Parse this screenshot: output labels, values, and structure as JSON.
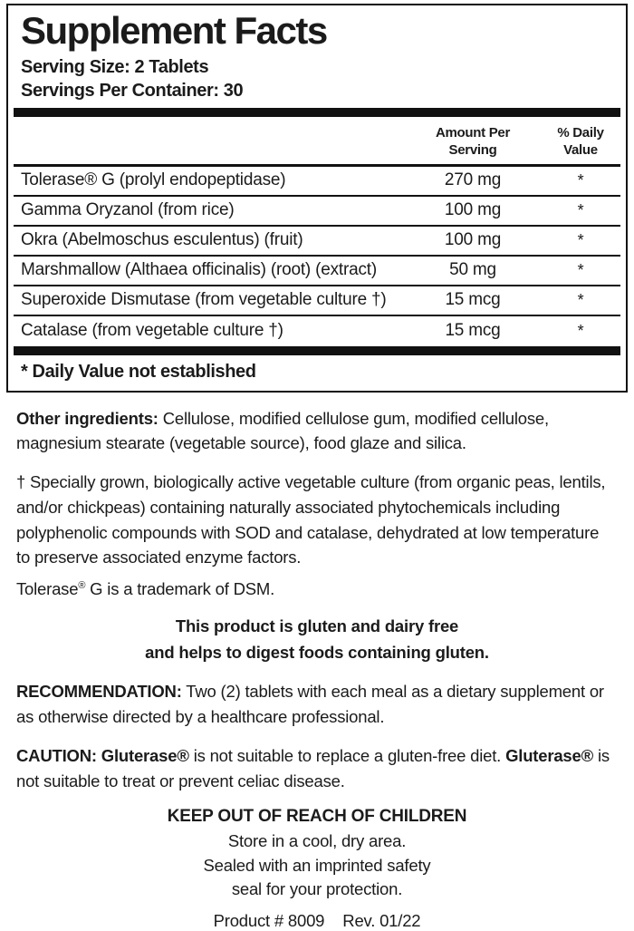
{
  "panel": {
    "title": "Supplement Facts",
    "serving_size": "Serving Size: 2 Tablets",
    "servings_per_container": "Servings Per Container: 30",
    "amount_header": "Amount Per\nServing",
    "daily_value_header": "% Daily\nValue",
    "rows": [
      {
        "name": "Tolerase® G (prolyl endopeptidase)",
        "amount": "270 mg",
        "daily_value": "*"
      },
      {
        "name": "Gamma Oryzanol (from rice)",
        "amount": "100 mg",
        "daily_value": "*"
      },
      {
        "name": "Okra (Abelmoschus esculentus) (fruit)",
        "amount": "100 mg",
        "daily_value": "*"
      },
      {
        "name": "Marshmallow (Althaea officinalis) (root) (extract)",
        "amount": "50 mg",
        "daily_value": "*"
      },
      {
        "name": "Superoxide Dismutase (from vegetable culture †)",
        "amount": "15 mcg",
        "daily_value": "*"
      },
      {
        "name": "Catalase (from vegetable culture †)",
        "amount": "15 mcg",
        "daily_value": "*"
      }
    ],
    "footnote": "* Daily Value not established"
  },
  "other_ingredients": {
    "label": "Other ingredients:",
    "text": " Cellulose, modified cellulose gum, modified cellulose, magnesium stearate (vegetable source), food glaze and silica."
  },
  "vegetable_culture_note": "† Specially grown, biologically active vegetable culture (from organic peas, lentils, and/or chickpeas) containing naturally associated phytochemicals including polyphenolic compounds with SOD and catalase, dehydrated at low temperature to preserve associated enzyme factors.",
  "trademark": {
    "pre": "Tolerase",
    "sup": "®",
    "post": " G is a trademark of DSM."
  },
  "gluten_statement": {
    "line1": "This product is gluten and dairy free",
    "line2": "and helps to digest foods containing gluten."
  },
  "recommendation": {
    "label": "RECOMMENDATION:",
    "text": " Two (2) tablets with each meal as a dietary supplement or as otherwise directed by a healthcare professional."
  },
  "caution": {
    "label": "CAUTION: Gluterase®",
    "text1": " is not suitable to replace a gluten-free diet. ",
    "brand": "Gluterase®",
    "text2": " is not suitable to treat or prevent celiac disease."
  },
  "keep_out": "KEEP OUT OF REACH OF CHILDREN",
  "storage": {
    "line1": "Store in a cool, dry area.",
    "line2": "Sealed with an imprinted safety",
    "line3": "seal for your protection."
  },
  "product": {
    "number": "Product # 8009",
    "revision": "Rev. 01/22"
  },
  "colors": {
    "text": "#1b1b1b",
    "rule": "#111111",
    "background": "#ffffff"
  }
}
